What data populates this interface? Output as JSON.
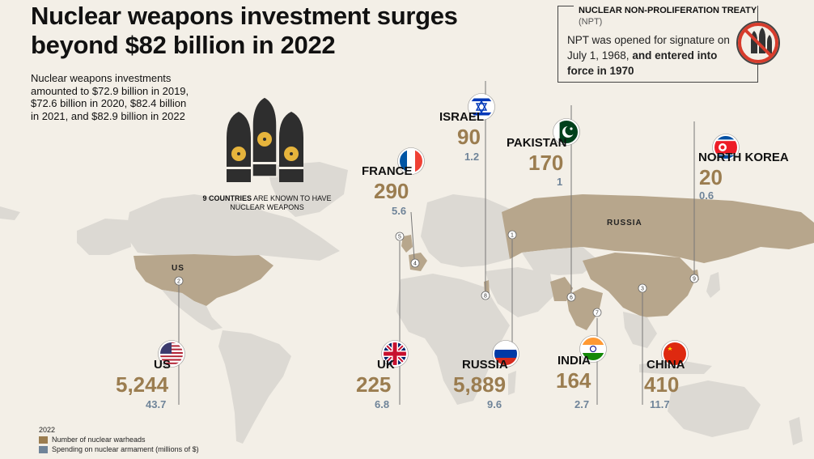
{
  "title": "Nuclear weapons investment surges beyond $82 billion in 2022",
  "title_lines": [
    "Nuclear weapons investment surges",
    "beyond $82 billion in 2022"
  ],
  "intro": "Nuclear weapons investments amounted to $72.9 billion in 2019, $72.6 billion in 2020, $82.4 billion in 2021, and $82.9 billion in 2022",
  "npt": {
    "heading": "NUCLEAR NON-PROLIFERATION TREATY",
    "abbr": "(NPT)",
    "text_plain": "NPT was opened for signature on July 1, 1968,",
    "text_bold": "and entered into force in 1970"
  },
  "known_countries": {
    "bold": "9 COUNTRIES",
    "rest": "ARE KNOWN TO HAVE NUCLEAR WEAPONS"
  },
  "map_labels": {
    "us": "US",
    "russia": "RUSSIA"
  },
  "legend": {
    "year": "2022",
    "warheads": "Number of nuclear warheads",
    "spending": "Spending on nuclear armament (millions of $)"
  },
  "colors": {
    "warheads": "#9b7d50",
    "spending": "#6f8499",
    "nuclear_land": "#b7a68c",
    "other_land": "#dcd9d3",
    "background": "#f3efe7"
  },
  "chart_data": {
    "type": "table",
    "title": "Nuclear weapons investment surges beyond $82 billion in 2022",
    "columns": [
      "Number of nuclear warheads",
      "Spending on nuclear armament (millions of $)"
    ],
    "rows": [
      {
        "id": 1,
        "country": "RUSSIA",
        "warheads": 5889,
        "warheads_label": "5,889",
        "spending": 9.6,
        "spending_label": "9.6",
        "flag": "russia-flag-icon"
      },
      {
        "id": 2,
        "country": "US",
        "warheads": 5244,
        "warheads_label": "5,244",
        "spending": 43.7,
        "spending_label": "43.7",
        "flag": "us-flag-icon"
      },
      {
        "id": 3,
        "country": "CHINA",
        "warheads": 410,
        "warheads_label": "410",
        "spending": 11.7,
        "spending_label": "11.7",
        "flag": "china-flag-icon"
      },
      {
        "id": 4,
        "country": "FRANCE",
        "warheads": 290,
        "warheads_label": "290",
        "spending": 5.6,
        "spending_label": "5.6",
        "flag": "france-flag-icon"
      },
      {
        "id": 5,
        "country": "UK",
        "warheads": 225,
        "warheads_label": "225",
        "spending": 6.8,
        "spending_label": "6.8",
        "flag": "uk-flag-icon"
      },
      {
        "id": 6,
        "country": "PAKISTAN",
        "warheads": 170,
        "warheads_label": "170",
        "spending": 1,
        "spending_label": "1",
        "flag": "pakistan-flag-icon"
      },
      {
        "id": 7,
        "country": "INDIA",
        "warheads": 164,
        "warheads_label": "164",
        "spending": 2.7,
        "spending_label": "2.7",
        "flag": "india-flag-icon"
      },
      {
        "id": 8,
        "country": "ISRAEL",
        "warheads": 90,
        "warheads_label": "90",
        "spending": 1.2,
        "spending_label": "1.2",
        "flag": "israel-flag-icon"
      },
      {
        "id": 9,
        "country": "NORTH KOREA",
        "warheads": 20,
        "warheads_label": "20",
        "spending": 0.6,
        "spending_label": "0.6",
        "flag": "north-korea-flag-icon"
      }
    ]
  }
}
